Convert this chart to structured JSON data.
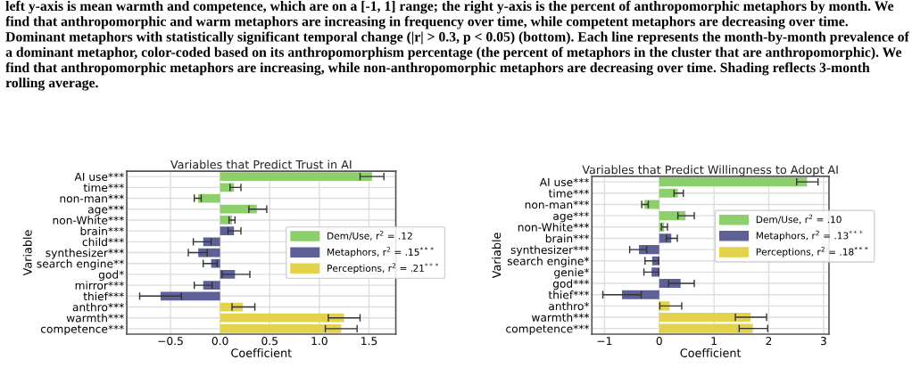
{
  "chart_data": [
    {
      "type": "bar",
      "orientation": "horizontal",
      "title": "Variables that Predict Trust in AI",
      "xlabel": "Coefficient",
      "ylabel": "Variable",
      "annotations": [
        "left y-axis is mean warmth and competence, which are on a [-1, 1] range; the right y-axis is the percent of anthropomorphic metaphors by month. We find that anthropomorphic and warm metaphors are increasing in frequency over time, while competent metaphors are decreasing over time. Dominant metaphors with statistically significant temporal change (|r| > 0.3, p < 0.05) (bottom). Each line represents the month-by-month prevalence of a dominant metaphor, color-coded based on its anthropomorphism percentage (the percent of metaphors in the cluster that are anthropomorphic). We find that anthropomorphic metaphors are increasing, while non-anthropomorphic metaphors are decreasing over time. Shading reflects 3-month rolling average."
      ],
      "categories": [
        "AI use***",
        "time***",
        "non-man***",
        "age***",
        "non-White***",
        "brain***",
        "child***",
        "synthesizer***",
        "search engine**",
        "god*",
        "mirror***",
        "thief***",
        "anthro***",
        "warmth***",
        "competence***"
      ],
      "series": [
        {
          "name": "Dem/Use, r$^{2}$ = .12",
          "color": "#8ccf6b",
          "values": [
            1.53,
            0.14,
            -0.22,
            0.37,
            0.12,
            null,
            null,
            null,
            null,
            null,
            null,
            null,
            null,
            null,
            null
          ],
          "errors": [
            [
              1.41,
              1.65
            ],
            [
              0.1,
              0.21
            ],
            [
              -0.26,
              -0.19
            ],
            [
              0.29,
              0.47
            ],
            [
              0.09,
              0.15
            ],
            null,
            null,
            null,
            null,
            null,
            null,
            null,
            null,
            null,
            null
          ]
        },
        {
          "name": "Metaphors, r$^{2}$ = .15$^{***}$",
          "color": "#5e6197",
          "values": [
            null,
            null,
            null,
            null,
            null,
            0.14,
            -0.17,
            -0.22,
            -0.09,
            0.15,
            -0.17,
            -0.6,
            null,
            null,
            null
          ],
          "errors": [
            null,
            null,
            null,
            null,
            null,
            [
              0.08,
              0.21
            ],
            [
              -0.27,
              -0.09
            ],
            [
              -0.32,
              -0.13
            ],
            [
              -0.17,
              -0.03
            ],
            [
              0.02,
              0.3
            ],
            [
              -0.26,
              -0.08
            ],
            [
              -0.81,
              -0.39
            ],
            null,
            null,
            null
          ]
        },
        {
          "name": "Perceptions, r$^{2}$ = .21$^{***}$",
          "color": "#e3d24c",
          "values": [
            null,
            null,
            null,
            null,
            null,
            null,
            null,
            null,
            null,
            null,
            null,
            null,
            0.23,
            1.25,
            1.22
          ],
          "errors": [
            null,
            null,
            null,
            null,
            null,
            null,
            null,
            null,
            null,
            null,
            null,
            null,
            [
              0.12,
              0.35
            ],
            [
              1.09,
              1.41
            ],
            [
              1.06,
              1.38
            ]
          ]
        }
      ],
      "xlim": [
        -0.94,
        1.77
      ],
      "xticks": [
        {
          "value": -0.5,
          "label": "−0.5"
        },
        {
          "value": 0.0,
          "label": "0.0"
        },
        {
          "value": 0.5,
          "label": "0.5"
        },
        {
          "value": 1.0,
          "label": "1.0"
        },
        {
          "value": 1.5,
          "label": "1.5"
        }
      ],
      "grid": true,
      "legend": "right"
    },
    {
      "type": "bar",
      "orientation": "horizontal",
      "title": "Variables that Predict Willingness to Adopt AI",
      "xlabel": "Coefficient",
      "ylabel": "Variable",
      "categories": [
        "AI use***",
        "time***",
        "non-man***",
        "age***",
        "non-White***",
        "brain***",
        "synthesizer***",
        "search engine*",
        "genie*",
        "god***",
        "thief***",
        "anthro*",
        "warmth***",
        "competence***"
      ],
      "series": [
        {
          "name": "Dem/Use, r$^{2}$ = .10",
          "color": "#8ccf6b",
          "values": [
            2.7,
            0.34,
            -0.27,
            0.48,
            0.09,
            null,
            null,
            null,
            null,
            null,
            null,
            null,
            null,
            null
          ],
          "errors": [
            [
              2.51,
              2.9
            ],
            [
              0.27,
              0.44
            ],
            [
              -0.32,
              -0.2
            ],
            [
              0.34,
              0.64
            ],
            [
              0.04,
              0.15
            ],
            null,
            null,
            null,
            null,
            null,
            null,
            null,
            null,
            null
          ]
        },
        {
          "name": "Metaphors, r$^{2}$ = .13$^{***}$",
          "color": "#5e6197",
          "values": [
            null,
            null,
            null,
            null,
            null,
            0.22,
            -0.37,
            -0.13,
            -0.14,
            0.39,
            -0.68,
            null,
            null,
            null
          ],
          "errors": [
            null,
            null,
            null,
            null,
            null,
            [
              0.13,
              0.33
            ],
            [
              -0.54,
              -0.23
            ],
            [
              -0.26,
              -0.01
            ],
            [
              -0.28,
              -0.01
            ],
            [
              0.17,
              0.64
            ],
            [
              -1.03,
              -0.33
            ],
            null,
            null,
            null
          ]
        },
        {
          "name": "Perceptions, r$^{2}$ = .18$^{***}$",
          "color": "#e3d24c",
          "values": [
            null,
            null,
            null,
            null,
            null,
            null,
            null,
            null,
            null,
            null,
            null,
            0.19,
            1.67,
            1.71
          ],
          "errors": [
            null,
            null,
            null,
            null,
            null,
            null,
            null,
            null,
            null,
            null,
            null,
            [
              0.01,
              0.41
            ],
            [
              1.39,
              1.96
            ],
            [
              1.46,
              1.98
            ]
          ]
        }
      ],
      "xlim": [
        -1.23,
        3.1
      ],
      "xticks": [
        {
          "value": -1,
          "label": "−1"
        },
        0,
        1,
        2,
        3
      ],
      "grid": true,
      "legend": "right"
    }
  ]
}
